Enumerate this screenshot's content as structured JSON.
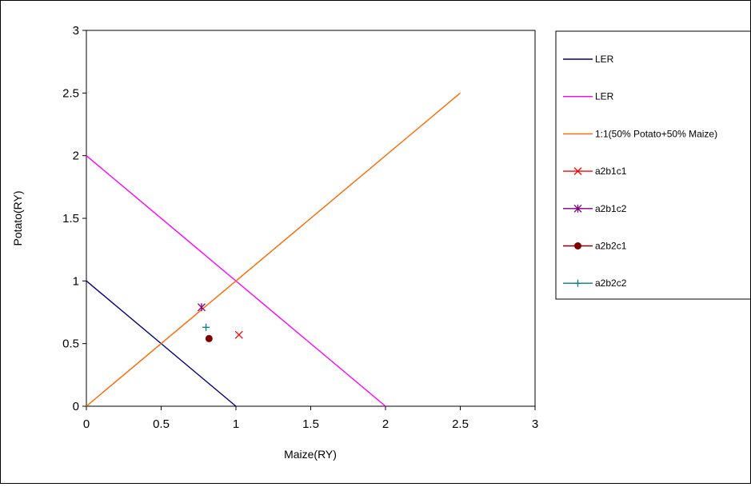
{
  "chart_data": {
    "type": "scatter",
    "title": "",
    "xlabel": "Maize(RY)",
    "ylabel": "Potato(RY)",
    "xlim": [
      0,
      3
    ],
    "ylim": [
      0,
      3
    ],
    "xticks": [
      "0",
      "0.5",
      "1",
      "1.5",
      "2",
      "2.5",
      "3"
    ],
    "yticks": [
      "0",
      "0.5",
      "1",
      "1.5",
      "2",
      "2.5",
      "3"
    ],
    "grid": false,
    "legend_position": "right",
    "series": [
      {
        "name": "LER",
        "kind": "line",
        "color": "#000080",
        "marker": "none",
        "x": [
          0,
          1
        ],
        "y": [
          1,
          0
        ]
      },
      {
        "name": "LER",
        "kind": "line",
        "color": "#ff00ff",
        "marker": "none",
        "x": [
          0,
          2
        ],
        "y": [
          2,
          0
        ]
      },
      {
        "name": "1:1(50% Potato+50% Maize)",
        "kind": "line",
        "color": "#ff6600",
        "marker": "none",
        "x": [
          0,
          2.5
        ],
        "y": [
          0,
          2.5
        ]
      },
      {
        "name": "a2b1c1",
        "kind": "point",
        "color": "#ff0000",
        "marker": "x",
        "x": [
          1.02
        ],
        "y": [
          0.57
        ]
      },
      {
        "name": "a2b1c2",
        "kind": "point",
        "color": "#800080",
        "marker": "star",
        "x": [
          0.77
        ],
        "y": [
          0.79
        ]
      },
      {
        "name": "a2b2c1",
        "kind": "point",
        "color": "#800000",
        "marker": "circle",
        "x": [
          0.82
        ],
        "y": [
          0.54
        ]
      },
      {
        "name": "a2b2c2",
        "kind": "point",
        "color": "#008080",
        "marker": "plus",
        "x": [
          0.8
        ],
        "y": [
          0.63
        ]
      }
    ]
  }
}
